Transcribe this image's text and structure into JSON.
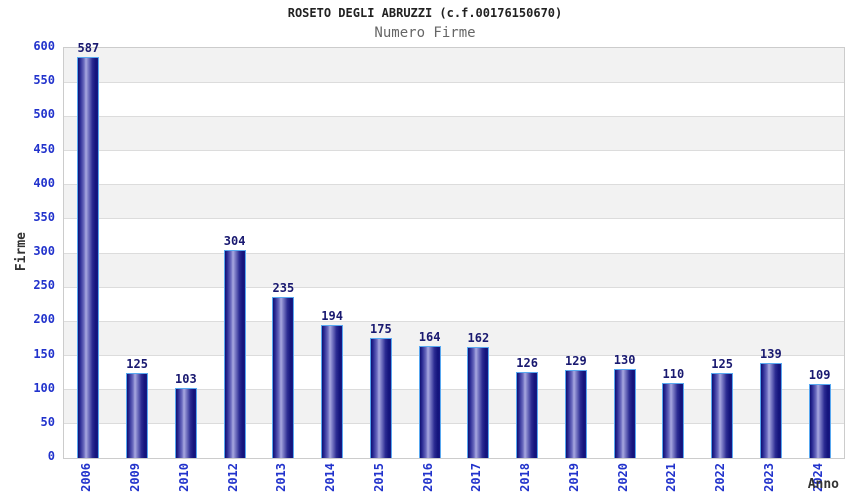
{
  "header": {
    "title": "ROSETO DEGLI ABRUZZI (c.f.00176150670)",
    "subtitle": "Numero Firme"
  },
  "chart_data": {
    "type": "bar",
    "title": "ROSETO DEGLI ABRUZZI (c.f.00176150670)",
    "subtitle": "Numero Firme",
    "xlabel": "Anno",
    "ylabel": "Firme",
    "categories": [
      "2006",
      "2009",
      "2010",
      "2012",
      "2013",
      "2014",
      "2015",
      "2016",
      "2017",
      "2018",
      "2019",
      "2020",
      "2021",
      "2022",
      "2023",
      "2024"
    ],
    "values": [
      587,
      125,
      103,
      304,
      235,
      194,
      175,
      164,
      162,
      126,
      129,
      130,
      110,
      125,
      139,
      109
    ],
    "ylim": [
      0,
      600
    ],
    "ytick_step": 50,
    "grid": "horizontal-bands",
    "legend_position": "none",
    "colors": {
      "bar_dark": "#15157e",
      "bar_light": "#a8a8e0",
      "bar_border": "#58a8f0",
      "tick_label": "#2233cc",
      "value_label": "#191970",
      "band_gray": "#f2f2f2",
      "band_white": "#ffffff",
      "gridline": "#dcdcdc",
      "plot_border": "#cccccc",
      "title": "#222222",
      "subtitle": "#666666",
      "axis_title": "#333333"
    }
  }
}
